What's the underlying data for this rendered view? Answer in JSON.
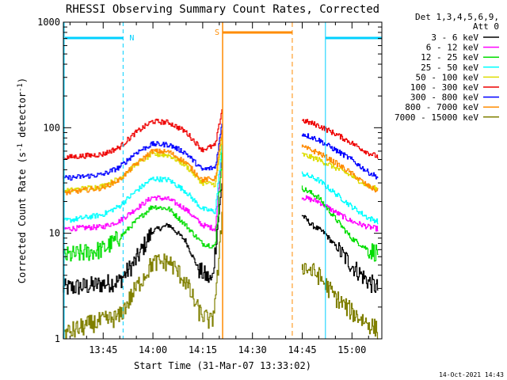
{
  "chart_data": {
    "type": "line",
    "title": "RHESSI Observing Summary Count Rates, Corrected",
    "xlabel": "Start Time (31-Mar-07 13:33:02)",
    "ylabel": "Corrected Count Rate (s⁻¹ detector⁻¹)",
    "ylabel_parts": [
      "Corrected Count Rate (s",
      "-1",
      " detector",
      "-1",
      ")"
    ],
    "y_scale": "log",
    "ylim": [
      1,
      1000
    ],
    "y_ticks": [
      1,
      10,
      100,
      1000
    ],
    "y_tick_labels": [
      "1",
      "10",
      "100",
      "1000"
    ],
    "x_range_minutes": [
      "13:33",
      "15:09"
    ],
    "x_tick_labels": [
      "13:45",
      "14:00",
      "14:15",
      "14:30",
      "14:45",
      "15:00"
    ],
    "timestamp": "14-Oct-2021 14:43",
    "legend": {
      "placement": "right",
      "header_line1": "Det 1,3,4,5,6,9,",
      "header_line2": "Att 0",
      "entries": [
        {
          "label": "3 - 6 keV",
          "color": "#000000"
        },
        {
          "label": "6 - 12 keV",
          "color": "#ff00ff"
        },
        {
          "label": "12 - 25 keV",
          "color": "#00dd00"
        },
        {
          "label": "25 - 50 keV",
          "color": "#00ffff"
        },
        {
          "label": "50 - 100 keV",
          "color": "#dddd00"
        },
        {
          "label": "100 - 300 keV",
          "color": "#ee0000"
        },
        {
          "label": "300 - 800 keV",
          "color": "#0000ff"
        },
        {
          "label": "800 - 7000 keV",
          "color": "#ff8c00"
        },
        {
          "label": "7000 - 15000 keV",
          "color": "#808000"
        }
      ]
    },
    "annotations": {
      "night": {
        "label": "N",
        "color": "#00d0ff",
        "start": "13:33",
        "end": "13:51",
        "start2": "14:52",
        "end2": "15:09"
      },
      "saa": {
        "label": "S",
        "color": "#ff8c00",
        "start": "14:21",
        "end": "14:42"
      }
    },
    "series": [
      {
        "color": "#000000",
        "points": [
          [
            "13:33",
            3.0
          ],
          [
            "13:42",
            3.2
          ],
          [
            "13:50",
            3.5
          ],
          [
            "13:55",
            5.5
          ],
          [
            "14:00",
            10.5
          ],
          [
            "14:05",
            12.0
          ],
          [
            "14:10",
            8.5
          ],
          [
            "14:14",
            4.5
          ],
          [
            "14:18",
            3.5
          ],
          [
            "14:20",
            15
          ],
          [
            "14:21",
            30
          ],
          [
            "14:45",
            15
          ],
          [
            "14:48",
            12
          ],
          [
            "14:52",
            10
          ],
          [
            "14:56",
            7
          ],
          [
            "15:00",
            5
          ],
          [
            "15:05",
            3.5
          ],
          [
            "15:08",
            3.0
          ]
        ]
      },
      {
        "color": "#ff00ff",
        "points": [
          [
            "13:33",
            11
          ],
          [
            "13:45",
            11.5
          ],
          [
            "13:50",
            13
          ],
          [
            "13:55",
            17
          ],
          [
            "14:00",
            22
          ],
          [
            "14:05",
            21
          ],
          [
            "14:10",
            17
          ],
          [
            "14:15",
            12
          ],
          [
            "14:19",
            11
          ],
          [
            "14:21",
            60
          ],
          [
            "14:45",
            22
          ],
          [
            "14:50",
            20
          ],
          [
            "14:55",
            16
          ],
          [
            "15:00",
            13
          ],
          [
            "15:05",
            11.5
          ],
          [
            "15:08",
            11
          ]
        ]
      },
      {
        "color": "#00dd00",
        "points": [
          [
            "13:33",
            6
          ],
          [
            "13:45",
            7
          ],
          [
            "13:50",
            9
          ],
          [
            "13:55",
            13
          ],
          [
            "14:00",
            18
          ],
          [
            "14:05",
            17
          ],
          [
            "14:10",
            12
          ],
          [
            "14:15",
            8
          ],
          [
            "14:19",
            7.5
          ],
          [
            "14:21",
            60
          ],
          [
            "14:45",
            27
          ],
          [
            "14:50",
            22
          ],
          [
            "14:55",
            14
          ],
          [
            "15:00",
            9
          ],
          [
            "15:05",
            7
          ],
          [
            "15:08",
            6.5
          ]
        ]
      },
      {
        "color": "#00ffff",
        "points": [
          [
            "13:33",
            13
          ],
          [
            "13:45",
            15
          ],
          [
            "13:50",
            18
          ],
          [
            "13:55",
            25
          ],
          [
            "14:00",
            33
          ],
          [
            "14:05",
            32
          ],
          [
            "14:10",
            25
          ],
          [
            "14:15",
            17
          ],
          [
            "14:19",
            16
          ],
          [
            "14:21",
            70
          ],
          [
            "14:45",
            37
          ],
          [
            "14:50",
            32
          ],
          [
            "14:55",
            24
          ],
          [
            "15:00",
            18
          ],
          [
            "15:05",
            14
          ],
          [
            "15:08",
            13
          ]
        ]
      },
      {
        "color": "#dddd00",
        "points": [
          [
            "13:33",
            25
          ],
          [
            "13:45",
            28
          ],
          [
            "13:50",
            33
          ],
          [
            "13:55",
            45
          ],
          [
            "14:00",
            56
          ],
          [
            "14:05",
            55
          ],
          [
            "14:10",
            44
          ],
          [
            "14:15",
            30
          ],
          [
            "14:19",
            29
          ],
          [
            "14:21",
            80
          ],
          [
            "14:45",
            56
          ],
          [
            "14:50",
            50
          ],
          [
            "14:55",
            42
          ],
          [
            "15:00",
            35
          ],
          [
            "15:05",
            28
          ],
          [
            "15:08",
            26
          ]
        ]
      },
      {
        "color": "#ee0000",
        "points": [
          [
            "13:33",
            52
          ],
          [
            "13:45",
            56
          ],
          [
            "13:50",
            65
          ],
          [
            "13:55",
            90
          ],
          [
            "14:00",
            115
          ],
          [
            "14:05",
            112
          ],
          [
            "14:10",
            92
          ],
          [
            "14:15",
            62
          ],
          [
            "14:19",
            68
          ],
          [
            "14:21",
            150
          ],
          [
            "14:45",
            118
          ],
          [
            "14:50",
            105
          ],
          [
            "14:55",
            88
          ],
          [
            "15:00",
            72
          ],
          [
            "15:05",
            58
          ],
          [
            "15:08",
            53
          ]
        ]
      },
      {
        "color": "#0000ff",
        "points": [
          [
            "13:33",
            33
          ],
          [
            "13:45",
            36
          ],
          [
            "13:50",
            42
          ],
          [
            "13:55",
            58
          ],
          [
            "14:00",
            70
          ],
          [
            "14:05",
            69
          ],
          [
            "14:10",
            58
          ],
          [
            "14:15",
            40
          ],
          [
            "14:19",
            42
          ],
          [
            "14:21",
            110
          ],
          [
            "14:45",
            88
          ],
          [
            "14:50",
            77
          ],
          [
            "14:55",
            62
          ],
          [
            "15:00",
            50
          ],
          [
            "15:05",
            38
          ],
          [
            "15:08",
            34
          ]
        ]
      },
      {
        "color": "#ff8c00",
        "points": [
          [
            "13:33",
            24
          ],
          [
            "13:45",
            27
          ],
          [
            "13:50",
            32
          ],
          [
            "13:55",
            45
          ],
          [
            "14:00",
            60
          ],
          [
            "14:05",
            59
          ],
          [
            "14:10",
            47
          ],
          [
            "14:15",
            32
          ],
          [
            "14:19",
            33
          ],
          [
            "14:21",
            95
          ],
          [
            "14:45",
            66
          ],
          [
            "14:50",
            58
          ],
          [
            "14:55",
            47
          ],
          [
            "15:00",
            37
          ],
          [
            "15:05",
            28
          ],
          [
            "15:08",
            25
          ]
        ]
      },
      {
        "color": "#808000",
        "points": [
          [
            "13:33",
            1.1
          ],
          [
            "13:42",
            1.4
          ],
          [
            "13:50",
            1.6
          ],
          [
            "13:55",
            3
          ],
          [
            "14:00",
            5.2
          ],
          [
            "14:05",
            5.4
          ],
          [
            "14:10",
            3.5
          ],
          [
            "14:14",
            1.8
          ],
          [
            "14:18",
            1.4
          ],
          [
            "14:20",
            5
          ],
          [
            "14:21",
            15
          ],
          [
            "14:45",
            5
          ],
          [
            "14:50",
            4
          ],
          [
            "14:55",
            2.5
          ],
          [
            "15:00",
            1.8
          ],
          [
            "15:05",
            1.4
          ],
          [
            "15:08",
            1.2
          ]
        ]
      }
    ]
  }
}
